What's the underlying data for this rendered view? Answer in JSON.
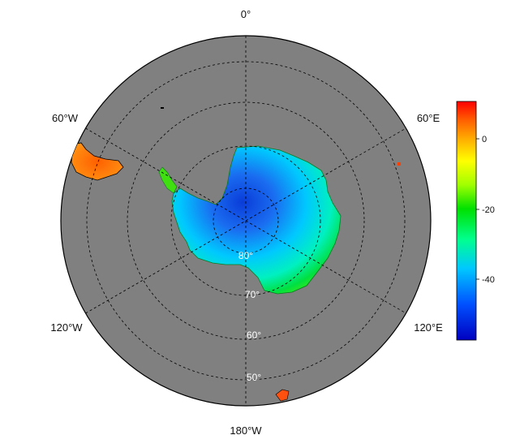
{
  "map": {
    "projection": "south-polar stereographic",
    "background_color": "#808080",
    "longitude_labels": [
      "0°",
      "60°E",
      "120°E",
      "180°W",
      "120°W",
      "60°W"
    ],
    "latitude_labels": [
      "80°",
      "70°",
      "60°",
      "50°"
    ]
  },
  "colorbar": {
    "ticks": [
      "0",
      "-20",
      "-40"
    ],
    "colors": [
      "#0000c0",
      "#0050ff",
      "#00c8ff",
      "#00ff90",
      "#00e000",
      "#a0ff00",
      "#ffff00",
      "#ffb000",
      "#ff6000",
      "#ff0000"
    ]
  },
  "icons": {
    "continent": "antarctica-shape",
    "land_south_america": "south-america-tip-shape",
    "land_island": "island-shape"
  }
}
